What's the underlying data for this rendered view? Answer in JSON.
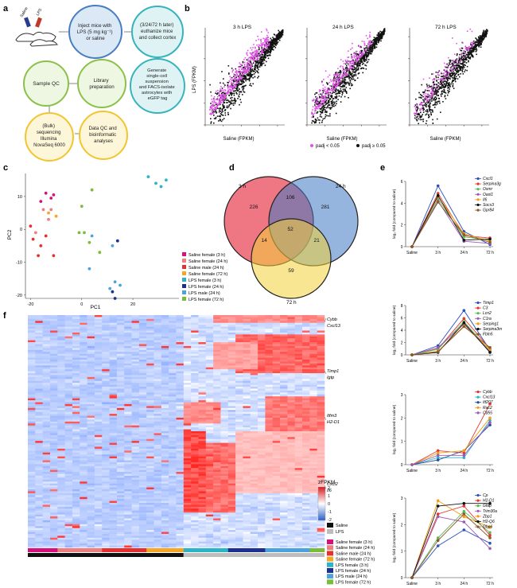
{
  "panels": {
    "a": "a",
    "b": "b",
    "c": "c",
    "d": "d",
    "e": "e",
    "f": "f"
  },
  "panel_a": {
    "syringe_saline": "Saline",
    "syringe_lps": "LPS",
    "inject_text": [
      "Inject mice with",
      "LPS (5 mg kg⁻¹)",
      "or saline"
    ],
    "euthanize_text": [
      "(3/24/72 h later)",
      "euthanize mice",
      "and collect cortex"
    ],
    "generate_text": [
      "Generate",
      "single-cell",
      "suspension",
      "and FACS-isolate",
      "astrocytes with",
      "eGFP tag"
    ],
    "library_text": [
      "Library",
      "preparation"
    ],
    "sampleqc_text": [
      "Sample QC"
    ],
    "bulk_text": [
      "(Bulk)",
      "sequencing",
      "Illumina",
      "NovaSeq 6000"
    ],
    "dataqc_text": [
      "Data QC and",
      "bioinformatic",
      "analyses"
    ],
    "colors": {
      "blue_fill": "#dbe8f6",
      "blue_stroke": "#4a7cc0",
      "teal_fill": "#dff3f4",
      "teal_stroke": "#36b3bc",
      "green_fill": "#eef7e1",
      "green_stroke": "#8cc04a",
      "yellow_fill": "#fdf6d8",
      "yellow_stroke": "#f2c530"
    }
  },
  "panel_b": {
    "ylabel": "LPS (FPKM)",
    "xlabel": "Saline (FPKM)",
    "titles": [
      "3 h LPS",
      "24 h LPS",
      "72 h LPS"
    ],
    "legend": [
      {
        "label": "padj < 0.05",
        "color": "#e055e6"
      },
      {
        "label": "padj ≥ 0.05",
        "color": "#111111"
      }
    ]
  },
  "chart_data": [
    {
      "type": "scatter",
      "title": "",
      "xlabel": "PC1",
      "ylabel": "PC2",
      "xlim": [
        -22,
        38
      ],
      "ylim": [
        -21,
        17
      ],
      "xticks": [
        -20,
        0,
        20
      ],
      "yticks": [
        10,
        0,
        -10,
        -20
      ],
      "series": [
        {
          "name": "Saline female (3 h)",
          "color": "#d6127a",
          "points": [
            [
              -14,
              11
            ],
            [
              -12,
              9.5
            ],
            [
              -16,
              8.5
            ],
            [
              -11,
              10.5
            ]
          ]
        },
        {
          "name": "Saline female (24 h)",
          "color": "#ee7f7d",
          "points": [
            [
              -13,
              3
            ],
            [
              -15,
              6
            ],
            [
              -12,
              6
            ],
            [
              -18,
              -1
            ]
          ]
        },
        {
          "name": "Saline male (24 h)",
          "color": "#e53030",
          "points": [
            [
              -19,
              -3
            ],
            [
              -16,
              -5
            ],
            [
              -14,
              -2
            ],
            [
              -11,
              -8
            ],
            [
              -17,
              -8
            ],
            [
              -20,
              1
            ]
          ]
        },
        {
          "name": "Saline female (72 h)",
          "color": "#f5a623",
          "points": [
            [
              -13,
              5
            ],
            [
              -10,
              4
            ]
          ]
        },
        {
          "name": "LPS female (3 h)",
          "color": "#2bb3c6",
          "points": [
            [
              29,
              14
            ],
            [
              31,
              13
            ],
            [
              33,
              15
            ],
            [
              26,
              16
            ]
          ]
        },
        {
          "name": "LPS female (24 h)",
          "color": "#1f2f8f",
          "points": [
            [
              14,
              -3.5
            ],
            [
              13,
              -21
            ],
            [
              12,
              -19
            ]
          ]
        },
        {
          "name": "LPS male (24 h)",
          "color": "#4ca3dc",
          "points": [
            [
              3,
              -12
            ],
            [
              11,
              -18
            ],
            [
              13,
              -16
            ],
            [
              15,
              -17
            ],
            [
              4,
              -2
            ],
            [
              12,
              -5
            ]
          ]
        },
        {
          "name": "LPS female (72 h)",
          "color": "#7bbd3a",
          "points": [
            [
              4,
              12
            ],
            [
              0,
              7
            ],
            [
              1,
              -1
            ],
            [
              3,
              -4
            ],
            [
              7,
              -7
            ],
            [
              -1,
              -1
            ]
          ]
        }
      ]
    },
    {
      "type": "venn",
      "sets": [
        {
          "name": "3 h",
          "color": "#e94a5a"
        },
        {
          "name": "24 h",
          "color": "#3f78c2"
        },
        {
          "name": "72 h",
          "color": "#f3d13a"
        }
      ],
      "regions": {
        "3h_only": 226,
        "24h_only": 281,
        "72h_only": 59,
        "3h_24h": 106,
        "3h_72h": 14,
        "24h_72h": 21,
        "all": 52
      }
    },
    {
      "type": "line",
      "title": "",
      "ylabel": "log₂ fold (compared to saline)",
      "categories": [
        "Saline",
        "3 h",
        "24 h",
        "72 h"
      ],
      "ylim": [
        0,
        6
      ],
      "yticks": [
        0,
        2,
        4,
        6
      ],
      "series": [
        {
          "name": "Cxcl1",
          "color": "#2a52be",
          "values": [
            0,
            5.6,
            1.4,
            0.2
          ]
        },
        {
          "name": "Serpina3g",
          "color": "#e2382b",
          "values": [
            0,
            4.9,
            1.0,
            0.8
          ]
        },
        {
          "name": "Osmr",
          "color": "#5cb85c",
          "values": [
            0,
            4.4,
            0.9,
            0.6
          ]
        },
        {
          "name": "Oasl1",
          "color": "#9b59b6",
          "values": [
            0,
            4.2,
            0.5,
            0.3
          ]
        },
        {
          "name": "Il6",
          "color": "#f39c12",
          "values": [
            0,
            4.6,
            1.2,
            0.5
          ]
        },
        {
          "name": "Socs3",
          "color": "#111111",
          "values": [
            0,
            4.7,
            0.6,
            0.7
          ]
        },
        {
          "name": "Gpr84",
          "color": "#8b5a2b",
          "values": [
            0,
            4.1,
            1.1,
            0.4
          ]
        }
      ]
    },
    {
      "type": "line",
      "title": "",
      "ylabel": "log₂ fold (compared to saline)",
      "categories": [
        "Saline",
        "3 h",
        "24 h",
        "72 h"
      ],
      "ylim": [
        0,
        8
      ],
      "yticks": [
        0,
        2,
        4,
        6,
        8
      ],
      "series": [
        {
          "name": "Timp1",
          "color": "#2a52be",
          "values": [
            0,
            1.5,
            7.2,
            0.8
          ]
        },
        {
          "name": "C3",
          "color": "#e2382b",
          "values": [
            0,
            1.0,
            5.9,
            1.0
          ]
        },
        {
          "name": "Lcn2",
          "color": "#5cb85c",
          "values": [
            0,
            0.9,
            5.4,
            0.6
          ]
        },
        {
          "name": "C1ra",
          "color": "#9b59b6",
          "values": [
            0,
            1.2,
            5.0,
            0.5
          ]
        },
        {
          "name": "Serping1",
          "color": "#f39c12",
          "values": [
            0,
            0.6,
            4.7,
            0.9
          ]
        },
        {
          "name": "Serpina3m",
          "color": "#111111",
          "values": [
            0,
            0.4,
            5.2,
            0.4
          ]
        },
        {
          "name": "Fbln5",
          "color": "#8b5a2b",
          "values": [
            0,
            0.5,
            4.6,
            1.2
          ]
        }
      ]
    },
    {
      "type": "line",
      "title": "",
      "ylabel": "log₂ fold (compared to saline)",
      "categories": [
        "Saline",
        "3 h",
        "24 h",
        "72 h"
      ],
      "ylim": [
        0,
        3
      ],
      "yticks": [
        0,
        1,
        2,
        3
      ],
      "series": [
        {
          "name": "Cybb",
          "color": "#e2382b",
          "values": [
            0,
            0.6,
            0.5,
            2.6
          ]
        },
        {
          "name": "Cxcl13",
          "color": "#2bb3c6",
          "values": [
            0,
            0.3,
            0.3,
            1.9
          ]
        },
        {
          "name": "Itf207",
          "color": "#1f4e9c",
          "values": [
            0,
            0.2,
            0.6,
            1.7
          ]
        },
        {
          "name": "Rac2",
          "color": "#f39c12",
          "values": [
            0,
            0.5,
            0.6,
            2.0
          ]
        },
        {
          "name": "Cd55",
          "color": "#9b59b6",
          "values": [
            0,
            0.4,
            0.4,
            1.8
          ]
        }
      ]
    },
    {
      "type": "line",
      "title": "",
      "ylabel": "log₂ fold (compared to saline)",
      "categories": [
        "Saline",
        "3 h",
        "24 h",
        "72 h"
      ],
      "ylim": [
        0,
        3
      ],
      "yticks": [
        0,
        1,
        2,
        3
      ],
      "series": [
        {
          "name": "Cp",
          "color": "#2a52be",
          "values": [
            0,
            1.2,
            1.8,
            1.3
          ]
        },
        {
          "name": "H2-D1",
          "color": "#e2382b",
          "values": [
            0,
            2.4,
            2.7,
            1.6
          ]
        },
        {
          "name": "Gfap",
          "color": "#5cb85c",
          "values": [
            0,
            1.5,
            2.5,
            1.7
          ]
        },
        {
          "name": "Trim30a",
          "color": "#9b59b6",
          "values": [
            0,
            2.3,
            2.1,
            1.1
          ]
        },
        {
          "name": "Zbp1",
          "color": "#f39c12",
          "values": [
            0,
            2.9,
            2.3,
            1.9
          ]
        },
        {
          "name": "H2-Q6",
          "color": "#111111",
          "values": [
            0,
            2.7,
            2.8,
            2.8
          ]
        },
        {
          "name": "Gbp6",
          "color": "#8b5a2b",
          "values": [
            0,
            1.4,
            2.4,
            1.5
          ]
        }
      ]
    }
  ],
  "panel_f": {
    "row_labels": [
      "Cybb",
      "Cxcl13",
      "Timp1",
      "Igtp",
      "Itfm3",
      "H2-D1",
      "Cxcl2",
      "Il6"
    ],
    "scale_title": "zFPKM",
    "scale_ticks": [
      "2",
      "1",
      "0",
      "-1",
      "-2"
    ],
    "treatment_legend": [
      {
        "label": "Saline",
        "color": "#111111"
      },
      {
        "label": "LPS",
        "color": "#bdbdbd"
      }
    ],
    "group_legend": [
      {
        "label": "Saline female (3 h)",
        "color": "#d6127a"
      },
      {
        "label": "Saline female (24 h)",
        "color": "#ee7f7d"
      },
      {
        "label": "Saline male (24 h)",
        "color": "#e53030"
      },
      {
        "label": "Saline female (72 h)",
        "color": "#f5a623"
      },
      {
        "label": "LPS female (3 h)",
        "color": "#2bb3c6"
      },
      {
        "label": "LPS female (24 h)",
        "color": "#1f2f8f"
      },
      {
        "label": "LPS male (24 h)",
        "color": "#4ca3dc"
      },
      {
        "label": "LPS female (72 h)",
        "color": "#7bbd3a"
      }
    ]
  }
}
